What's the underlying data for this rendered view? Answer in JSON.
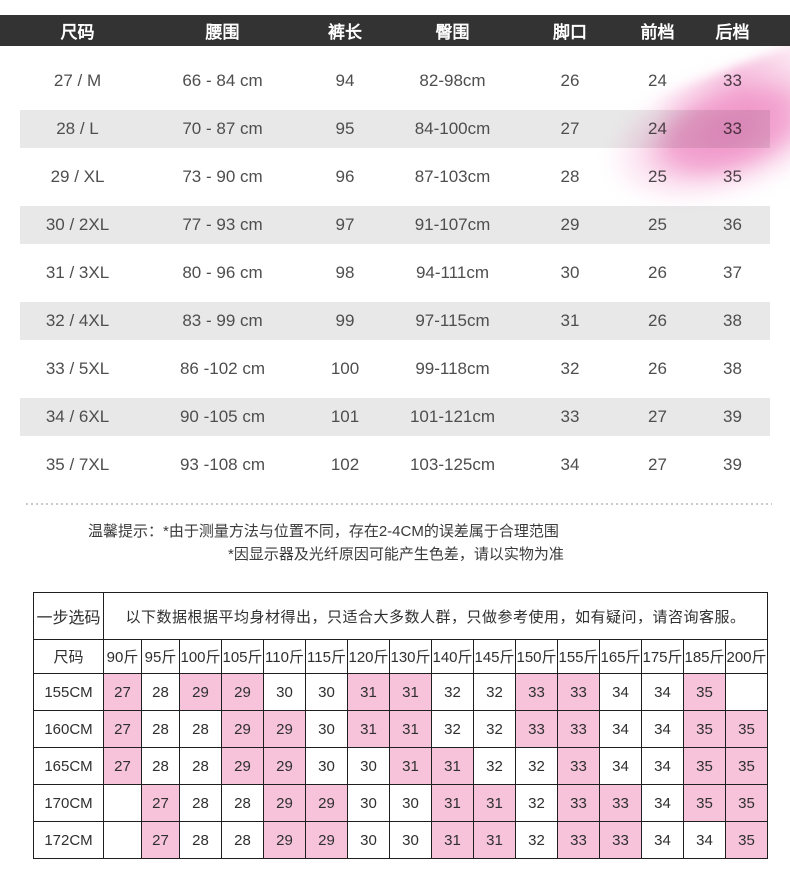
{
  "colors": {
    "header_bg": "#333333",
    "stripe": "#e8e8e8",
    "highlight": "#f6c3da",
    "border": "#1f1f1f"
  },
  "size_table": {
    "headers": [
      "尺码",
      "腰围",
      "裤长",
      "臀围",
      "脚口",
      "前档",
      "后档"
    ],
    "rows": [
      [
        "27 / M",
        "66 - 84 cm",
        "94",
        "82-98cm",
        "26",
        "24",
        "33"
      ],
      [
        "28 / L",
        "70 - 87 cm",
        "95",
        "84-100cm",
        "27",
        "24",
        "33"
      ],
      [
        "29 / XL",
        "73 - 90 cm",
        "96",
        "87-103cm",
        "28",
        "25",
        "35"
      ],
      [
        "30 / 2XL",
        "77 - 93 cm",
        "97",
        "91-107cm",
        "29",
        "25",
        "36"
      ],
      [
        "31 / 3XL",
        "80 - 96 cm",
        "98",
        "94-111cm",
        "30",
        "26",
        "37"
      ],
      [
        "32 / 4XL",
        "83 - 99 cm",
        "99",
        "97-115cm",
        "31",
        "26",
        "38"
      ],
      [
        "33 / 5XL",
        "86 -102 cm",
        "100",
        "99-118cm",
        "32",
        "26",
        "38"
      ],
      [
        "34 / 6XL",
        "90 -105 cm",
        "101",
        "101-121cm",
        "33",
        "27",
        "39"
      ],
      [
        "35 / 7XL",
        "93 -108 cm",
        "102",
        "103-125cm",
        "34",
        "27",
        "39"
      ]
    ]
  },
  "notice": {
    "line1": "温馨提示：*由于测量方法与位置不同，存在2-4CM的误差属于合理范围",
    "line2": "*因显示器及光纤原因可能产生色差，请以实物为准"
  },
  "quick_table": {
    "title": "一步选码",
    "description": "以下数据根据平均身材得出，只适合大多数人群，只做参考使用，如有疑问，请咨询客服。",
    "corner": "尺码",
    "weight_headers": [
      "90斤",
      "95斤",
      "100斤",
      "105斤",
      "110斤",
      "115斤",
      "120斤",
      "130斤",
      "140斤",
      "145斤",
      "150斤",
      "155斤",
      "165斤",
      "175斤",
      "185斤",
      "200斤"
    ],
    "rows": [
      {
        "height": "155CM",
        "cells": [
          {
            "v": "27",
            "hl": true
          },
          {
            "v": "28",
            "hl": false
          },
          {
            "v": "29",
            "hl": true
          },
          {
            "v": "29",
            "hl": true
          },
          {
            "v": "30",
            "hl": false
          },
          {
            "v": "30",
            "hl": false
          },
          {
            "v": "31",
            "hl": true
          },
          {
            "v": "31",
            "hl": true
          },
          {
            "v": "32",
            "hl": false
          },
          {
            "v": "32",
            "hl": false
          },
          {
            "v": "33",
            "hl": true
          },
          {
            "v": "33",
            "hl": true
          },
          {
            "v": "34",
            "hl": false
          },
          {
            "v": "34",
            "hl": false
          },
          {
            "v": "35",
            "hl": true
          },
          {
            "v": "",
            "hl": false
          }
        ]
      },
      {
        "height": "160CM",
        "cells": [
          {
            "v": "27",
            "hl": true
          },
          {
            "v": "28",
            "hl": false
          },
          {
            "v": "28",
            "hl": false
          },
          {
            "v": "29",
            "hl": true
          },
          {
            "v": "29",
            "hl": true
          },
          {
            "v": "30",
            "hl": false
          },
          {
            "v": "31",
            "hl": true
          },
          {
            "v": "31",
            "hl": true
          },
          {
            "v": "32",
            "hl": false
          },
          {
            "v": "32",
            "hl": false
          },
          {
            "v": "33",
            "hl": true
          },
          {
            "v": "33",
            "hl": true
          },
          {
            "v": "34",
            "hl": false
          },
          {
            "v": "34",
            "hl": false
          },
          {
            "v": "35",
            "hl": true
          },
          {
            "v": "35",
            "hl": true
          }
        ]
      },
      {
        "height": "165CM",
        "cells": [
          {
            "v": "27",
            "hl": true
          },
          {
            "v": "28",
            "hl": false
          },
          {
            "v": "28",
            "hl": false
          },
          {
            "v": "29",
            "hl": true
          },
          {
            "v": "29",
            "hl": true
          },
          {
            "v": "30",
            "hl": false
          },
          {
            "v": "30",
            "hl": false
          },
          {
            "v": "31",
            "hl": true
          },
          {
            "v": "31",
            "hl": true
          },
          {
            "v": "32",
            "hl": false
          },
          {
            "v": "32",
            "hl": false
          },
          {
            "v": "33",
            "hl": true
          },
          {
            "v": "34",
            "hl": false
          },
          {
            "v": "34",
            "hl": false
          },
          {
            "v": "35",
            "hl": true
          },
          {
            "v": "35",
            "hl": true
          }
        ]
      },
      {
        "height": "170CM",
        "cells": [
          {
            "v": "",
            "hl": false
          },
          {
            "v": "27",
            "hl": true
          },
          {
            "v": "28",
            "hl": false
          },
          {
            "v": "28",
            "hl": false
          },
          {
            "v": "29",
            "hl": true
          },
          {
            "v": "29",
            "hl": true
          },
          {
            "v": "30",
            "hl": false
          },
          {
            "v": "30",
            "hl": false
          },
          {
            "v": "31",
            "hl": true
          },
          {
            "v": "31",
            "hl": true
          },
          {
            "v": "32",
            "hl": false
          },
          {
            "v": "33",
            "hl": true
          },
          {
            "v": "33",
            "hl": true
          },
          {
            "v": "34",
            "hl": false
          },
          {
            "v": "35",
            "hl": true
          },
          {
            "v": "35",
            "hl": true
          }
        ]
      },
      {
        "height": "172CM",
        "cells": [
          {
            "v": "",
            "hl": false
          },
          {
            "v": "27",
            "hl": true
          },
          {
            "v": "28",
            "hl": false
          },
          {
            "v": "28",
            "hl": false
          },
          {
            "v": "29",
            "hl": true
          },
          {
            "v": "29",
            "hl": true
          },
          {
            "v": "30",
            "hl": false
          },
          {
            "v": "30",
            "hl": false
          },
          {
            "v": "31",
            "hl": true
          },
          {
            "v": "31",
            "hl": true
          },
          {
            "v": "32",
            "hl": false
          },
          {
            "v": "33",
            "hl": true
          },
          {
            "v": "33",
            "hl": true
          },
          {
            "v": "34",
            "hl": false
          },
          {
            "v": "34",
            "hl": false
          },
          {
            "v": "35",
            "hl": true
          }
        ]
      }
    ]
  }
}
